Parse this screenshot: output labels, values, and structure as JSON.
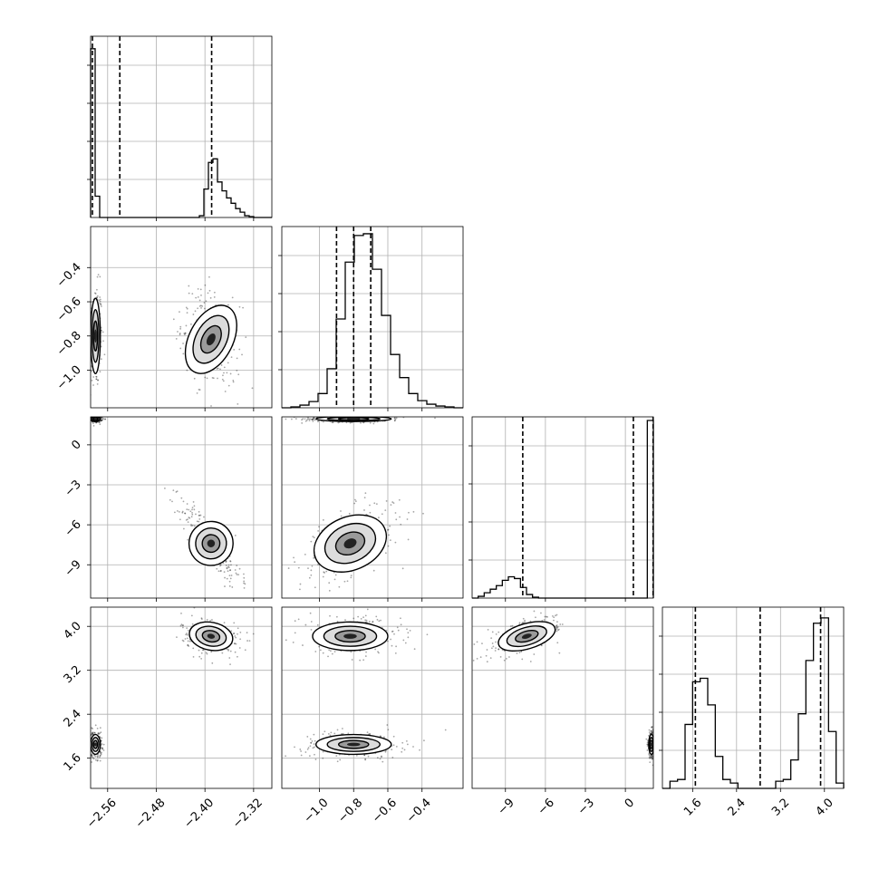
{
  "chart_data": {
    "type": "corner",
    "title": "",
    "variables": [
      {
        "label": "",
        "range": [
          -2.588,
          -2.29
        ],
        "ticks": [
          -2.56,
          -2.48,
          -2.4,
          -2.32
        ],
        "tick_labels": [
          "−2.56",
          "−2.48",
          "−2.40",
          "−2.32"
        ]
      },
      {
        "label": "",
        "range": [
          -1.22,
          -0.16
        ],
        "ticks": [
          -1.0,
          -0.8,
          -0.6,
          -0.4
        ],
        "tick_labels": [
          "−1.0",
          "−0.8",
          "−0.6",
          "−0.4"
        ]
      },
      {
        "label": "",
        "range": [
          -11.5,
          2.1
        ],
        "ticks": [
          -9,
          -6,
          -3,
          0
        ],
        "tick_labels": [
          "−9",
          "−6",
          "−3",
          "0"
        ]
      },
      {
        "label": "",
        "range": [
          1.05,
          4.35
        ],
        "ticks": [
          1.6,
          2.4,
          3.2,
          4.0
        ],
        "tick_labels": [
          "1.6",
          "2.4",
          "3.2",
          "4.0"
        ]
      }
    ],
    "histograms": [
      {
        "values": [
          0.95,
          0.12,
          0,
          0,
          0,
          0,
          0,
          0,
          0,
          0,
          0,
          0,
          0,
          0,
          0,
          0,
          0,
          0,
          0,
          0,
          0,
          0,
          0,
          0,
          0.01,
          0.16,
          0.31,
          0.33,
          0.2,
          0.15,
          0.11,
          0.08,
          0.05,
          0.03,
          0.01,
          0.005,
          0.0,
          0.0,
          0.0,
          0.0
        ],
        "quantiles": [
          -2.585,
          -2.54,
          -2.389
        ]
      },
      {
        "values": [
          0.0,
          0.005,
          0.015,
          0.035,
          0.08,
          0.22,
          0.5,
          0.82,
          0.97,
          0.98,
          0.78,
          0.52,
          0.3,
          0.17,
          0.08,
          0.04,
          0.02,
          0.01,
          0.005,
          0.0
        ],
        "quantiles": [
          -0.9,
          -0.8,
          -0.7
        ]
      },
      {
        "values": [
          0.0,
          0.01,
          0.03,
          0.05,
          0.07,
          0.1,
          0.12,
          0.11,
          0.06,
          0.02,
          0.005,
          0,
          0,
          0,
          0,
          0,
          0,
          0,
          0,
          0,
          0,
          0,
          0,
          0,
          0,
          0,
          0,
          0,
          0,
          1.0
        ],
        "quantiles": [
          -7.7,
          0.6,
          2.08
        ]
      },
      {
        "values": [
          0.0,
          0.04,
          0.05,
          0.36,
          0.6,
          0.62,
          0.47,
          0.18,
          0.05,
          0.03,
          0.0,
          0.0,
          0.0,
          0.0,
          0.0,
          0.04,
          0.05,
          0.16,
          0.42,
          0.72,
          0.93,
          0.96,
          0.32,
          0.03
        ],
        "quantiles": [
          1.65,
          2.83,
          3.93
        ]
      }
    ],
    "clusters": [
      {
        "means": [
          -2.58,
          -0.8,
          1.95,
          1.85
        ],
        "sd": [
          0.004,
          0.11,
          0.1,
          0.09
        ]
      },
      {
        "means": [
          -2.39,
          -0.82,
          -7.4,
          3.82
        ],
        "sd": [
          0.018,
          0.11,
          1.1,
          0.13
        ]
      }
    ],
    "correlations": [
      [
        0,
        1,
        -0.3
      ],
      [
        0,
        2,
        -0.85
      ],
      [
        1,
        2,
        0.55
      ],
      [
        2,
        3,
        0.6
      ],
      [
        0,
        3,
        -0.3
      ]
    ]
  }
}
